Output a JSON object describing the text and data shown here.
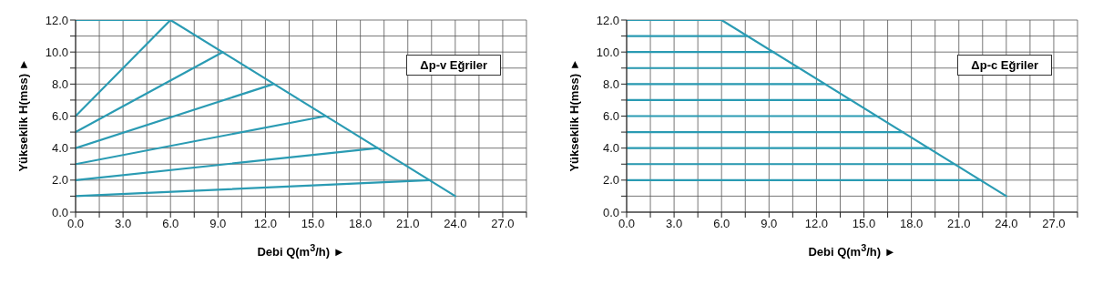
{
  "chart_data": [
    {
      "type": "line",
      "xlabel": "Debi Q(m$^{3}$/h) ►",
      "ylabel": "Yükseklik H(mss) ►",
      "annotations": [
        "Δp-v Eğriler"
      ],
      "grid": true,
      "xlim": [
        0,
        28.5
      ],
      "ylim": [
        0,
        12
      ],
      "xticks": [
        {
          "value": 0,
          "label": "0.0"
        },
        {
          "value": 1.5,
          "label": null
        },
        {
          "value": 3,
          "label": "3.0"
        },
        {
          "value": 4.5,
          "label": null
        },
        {
          "value": 6,
          "label": "6.0"
        },
        {
          "value": 7.5,
          "label": null
        },
        {
          "value": 9,
          "label": "9.0"
        },
        {
          "value": 10.5,
          "label": null
        },
        {
          "value": 12,
          "label": "12.0"
        },
        {
          "value": 13.5,
          "label": null
        },
        {
          "value": 15,
          "label": "15.0"
        },
        {
          "value": 16.5,
          "label": null
        },
        {
          "value": 18,
          "label": "18.0"
        },
        {
          "value": 19.5,
          "label": null
        },
        {
          "value": 21,
          "label": "21.0"
        },
        {
          "value": 22.5,
          "label": null
        },
        {
          "value": 24,
          "label": "24.0"
        },
        {
          "value": 25.5,
          "label": null
        },
        {
          "value": 27,
          "label": "27.0"
        },
        {
          "value": 28.5,
          "label": null
        }
      ],
      "yticks": [
        {
          "value": 0,
          "label": "0.0"
        },
        {
          "value": 1,
          "label": null
        },
        {
          "value": 2,
          "label": "2.0"
        },
        {
          "value": 3,
          "label": null
        },
        {
          "value": 4,
          "label": "4.0"
        },
        {
          "value": 5,
          "label": null
        },
        {
          "value": 6,
          "label": "6.0"
        },
        {
          "value": 7,
          "label": null
        },
        {
          "value": 8,
          "label": "8.0"
        },
        {
          "value": 9,
          "label": null
        },
        {
          "value": 10,
          "label": "10.0"
        },
        {
          "value": 11,
          "label": null
        },
        {
          "value": 12,
          "label": "12.0"
        }
      ],
      "series": [
        {
          "color": "#2a9bb3",
          "x": [
            0,
            6,
            24
          ],
          "values": [
            12,
            12,
            1
          ]
        },
        {
          "color": "#2a9bb3",
          "x": [
            0,
            6
          ],
          "values": [
            6,
            12
          ]
        },
        {
          "color": "#2a9bb3",
          "x": [
            0,
            9.3
          ],
          "values": [
            5,
            10
          ]
        },
        {
          "color": "#2a9bb3",
          "x": [
            0,
            12.5
          ],
          "values": [
            4,
            8
          ]
        },
        {
          "color": "#2a9bb3",
          "x": [
            0,
            15.8
          ],
          "values": [
            3,
            6
          ]
        },
        {
          "color": "#2a9bb3",
          "x": [
            0,
            19.1
          ],
          "values": [
            2,
            4
          ]
        },
        {
          "color": "#2a9bb3",
          "x": [
            0,
            22.4
          ],
          "values": [
            1,
            2
          ]
        }
      ]
    },
    {
      "type": "line",
      "xlabel": "Debi Q(m$^{3}$/h) ►",
      "ylabel": "Yükseklik H(mss) ►",
      "annotations": [
        "Δp-c Eğriler"
      ],
      "grid": true,
      "xlim": [
        0,
        28.5
      ],
      "ylim": [
        0,
        12
      ],
      "xticks": [
        {
          "value": 0,
          "label": "0.0"
        },
        {
          "value": 1.5,
          "label": null
        },
        {
          "value": 3,
          "label": "3.0"
        },
        {
          "value": 4.5,
          "label": null
        },
        {
          "value": 6,
          "label": "6.0"
        },
        {
          "value": 7.5,
          "label": null
        },
        {
          "value": 9,
          "label": "9.0"
        },
        {
          "value": 10.5,
          "label": null
        },
        {
          "value": 12,
          "label": "12.0"
        },
        {
          "value": 13.5,
          "label": null
        },
        {
          "value": 15,
          "label": "15.0"
        },
        {
          "value": 16.5,
          "label": null
        },
        {
          "value": 18,
          "label": "18.0"
        },
        {
          "value": 19.5,
          "label": null
        },
        {
          "value": 21,
          "label": "21.0"
        },
        {
          "value": 22.5,
          "label": null
        },
        {
          "value": 24,
          "label": "24.0"
        },
        {
          "value": 25.5,
          "label": null
        },
        {
          "value": 27,
          "label": "27.0"
        },
        {
          "value": 28.5,
          "label": null
        }
      ],
      "yticks": [
        {
          "value": 0,
          "label": "0.0"
        },
        {
          "value": 1,
          "label": null
        },
        {
          "value": 2,
          "label": "2.0"
        },
        {
          "value": 3,
          "label": null
        },
        {
          "value": 4,
          "label": "4.0"
        },
        {
          "value": 5,
          "label": null
        },
        {
          "value": 6,
          "label": "6.0"
        },
        {
          "value": 7,
          "label": null
        },
        {
          "value": 8,
          "label": "8.0"
        },
        {
          "value": 9,
          "label": null
        },
        {
          "value": 10,
          "label": "10.0"
        },
        {
          "value": 11,
          "label": null
        },
        {
          "value": 12,
          "label": "12.0"
        }
      ],
      "series": [
        {
          "color": "#2a9bb3",
          "x": [
            0,
            6,
            24
          ],
          "values": [
            12,
            12,
            1
          ]
        },
        {
          "color": "#2a9bb3",
          "x": [
            0,
            7.6
          ],
          "values": [
            11,
            11
          ]
        },
        {
          "color": "#2a9bb3",
          "x": [
            0,
            9.3
          ],
          "values": [
            10,
            10
          ]
        },
        {
          "color": "#2a9bb3",
          "x": [
            0,
            10.9
          ],
          "values": [
            9,
            9
          ]
        },
        {
          "color": "#2a9bb3",
          "x": [
            0,
            12.5
          ],
          "values": [
            8,
            8
          ]
        },
        {
          "color": "#2a9bb3",
          "x": [
            0,
            14.2
          ],
          "values": [
            7,
            7
          ]
        },
        {
          "color": "#2a9bb3",
          "x": [
            0,
            15.8
          ],
          "values": [
            6,
            6
          ]
        },
        {
          "color": "#2a9bb3",
          "x": [
            0,
            17.5
          ],
          "values": [
            5,
            5
          ]
        },
        {
          "color": "#2a9bb3",
          "x": [
            0,
            19.1
          ],
          "values": [
            4,
            4
          ]
        },
        {
          "color": "#2a9bb3",
          "x": [
            0,
            20.7
          ],
          "values": [
            3,
            3
          ]
        },
        {
          "color": "#2a9bb3",
          "x": [
            0,
            22.4
          ],
          "values": [
            2,
            2
          ]
        }
      ]
    }
  ]
}
